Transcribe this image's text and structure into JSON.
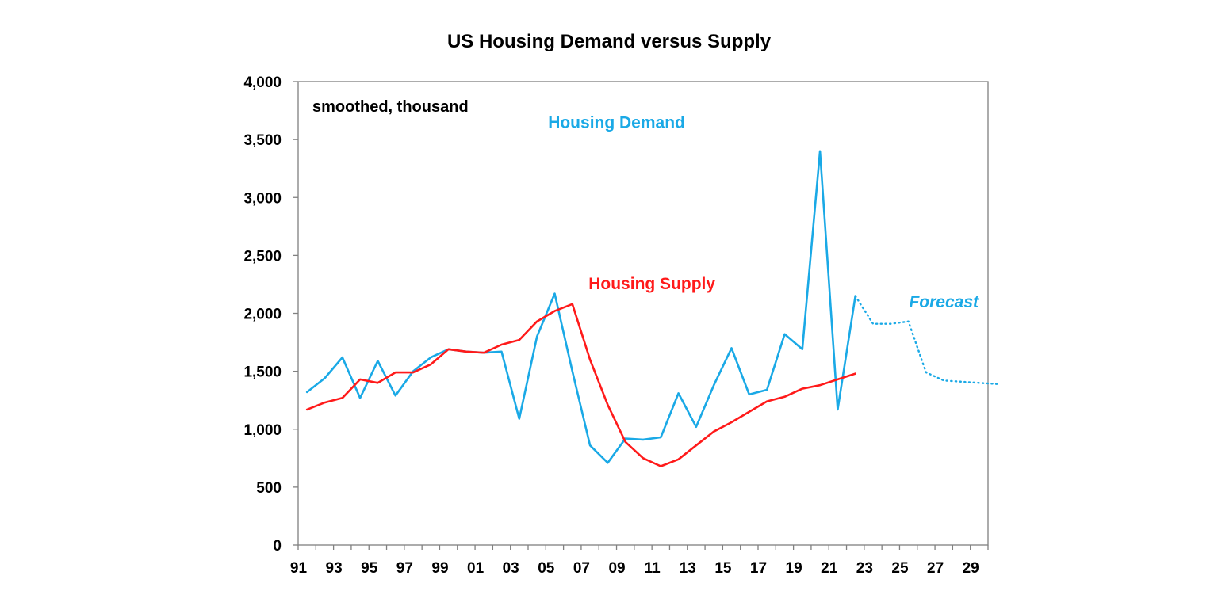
{
  "chart_data": {
    "type": "line",
    "title": "US Housing Demand versus Supply",
    "subtitle": "smoothed, thousand",
    "xlabel": "",
    "ylabel": "",
    "xlim": [
      1991,
      2030
    ],
    "ylim": [
      0,
      4000
    ],
    "y_ticks": [
      0,
      500,
      1000,
      1500,
      2000,
      2500,
      3000,
      3500,
      4000
    ],
    "y_tick_labels": [
      "0",
      "500",
      "1,000",
      "1,500",
      "2,000",
      "2,500",
      "3,000",
      "3,500",
      "4,000"
    ],
    "x_ticks": [
      1991,
      1993,
      1995,
      1997,
      1999,
      2001,
      2003,
      2005,
      2007,
      2009,
      2011,
      2013,
      2015,
      2017,
      2019,
      2021,
      2023,
      2025,
      2027,
      2029
    ],
    "x_tick_labels": [
      "91",
      "93",
      "95",
      "97",
      "99",
      "01",
      "03",
      "05",
      "07",
      "09",
      "11",
      "13",
      "15",
      "17",
      "19",
      "21",
      "23",
      "25",
      "27",
      "29"
    ],
    "grid": false,
    "series": [
      {
        "name": "Housing Demand",
        "color": "#1aa9e6",
        "style": "solid",
        "x": [
          1991.5,
          1992.5,
          1993.5,
          1994.5,
          1995.5,
          1996.5,
          1997.5,
          1998.5,
          1999.5,
          2000.5,
          2001.5,
          2002.5,
          2003.5,
          2004.5,
          2005.5,
          2006.5,
          2007.5,
          2008.5,
          2009.5,
          2010.5,
          2011.5,
          2012.5,
          2013.5,
          2014.5,
          2015.5,
          2016.5,
          2017.5,
          2018.5,
          2019.5,
          2020.5,
          2021.5,
          2022.5
        ],
        "values": [
          1320,
          1440,
          1620,
          1270,
          1590,
          1290,
          1500,
          1620,
          1690,
          1670,
          1660,
          1670,
          1090,
          1800,
          2170,
          1500,
          860,
          710,
          920,
          910,
          930,
          1310,
          1020,
          1380,
          1700,
          1300,
          1340,
          1820,
          1690,
          3400,
          1170,
          2150
        ]
      },
      {
        "name": "Housing Supply",
        "color": "#ff1a1a",
        "style": "solid",
        "x": [
          1991.5,
          1992.5,
          1993.5,
          1994.5,
          1995.5,
          1996.5,
          1997.5,
          1998.5,
          1999.5,
          2000.5,
          2001.5,
          2002.5,
          2003.5,
          2004.5,
          2005.5,
          2006.5,
          2007.5,
          2008.5,
          2009.5,
          2010.5,
          2011.5,
          2012.5,
          2013.5,
          2014.5,
          2015.5,
          2016.5,
          2017.5,
          2018.5,
          2019.5,
          2020.5,
          2021.5,
          2022.5
        ],
        "values": [
          1170,
          1230,
          1270,
          1430,
          1400,
          1490,
          1490,
          1560,
          1690,
          1670,
          1660,
          1730,
          1770,
          1930,
          2020,
          2080,
          1600,
          1210,
          890,
          750,
          680,
          740,
          860,
          980,
          1060,
          1150,
          1240,
          1280,
          1350,
          1380,
          1430,
          1480
        ]
      },
      {
        "name": "Forecast",
        "color": "#1aa9e6",
        "style": "dotted",
        "x": [
          2022.5,
          2023.5,
          2024.5,
          2025.5,
          2026.5,
          2027.5,
          2028.5,
          2029.5,
          2030.5
        ],
        "values": [
          2150,
          1910,
          1910,
          1930,
          1490,
          1420,
          1410,
          1400,
          1390
        ]
      }
    ],
    "annotations": [
      {
        "text": "Housing Demand",
        "color": "#1aa9e6",
        "x": 2009.0,
        "y": 3600,
        "italic": false
      },
      {
        "text": "Housing Supply",
        "color": "#ff1a1a",
        "x": 2011.0,
        "y": 2210,
        "italic": false
      },
      {
        "text": "Forecast",
        "color": "#1aa9e6",
        "x": 2027.5,
        "y": 2050,
        "italic": true
      }
    ]
  }
}
